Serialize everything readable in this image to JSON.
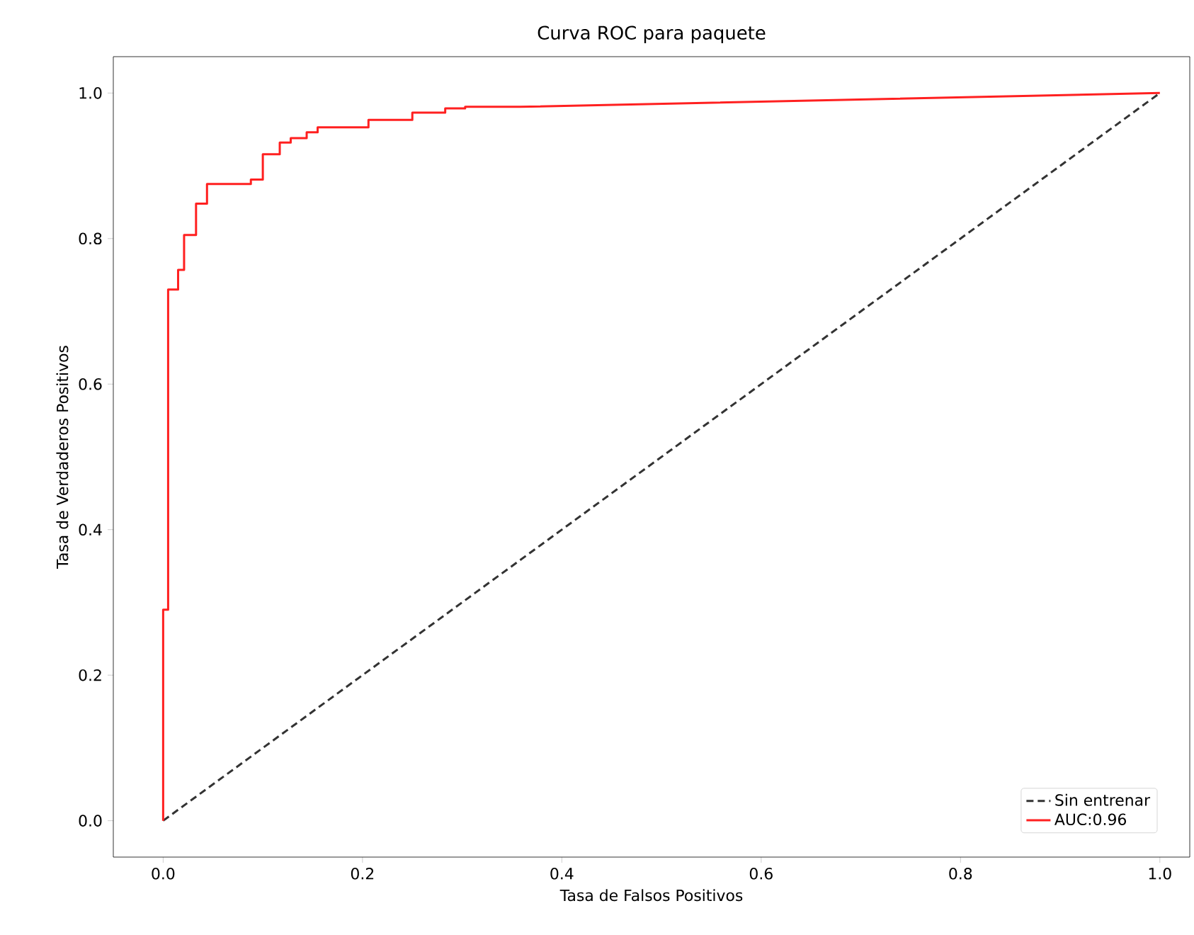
{
  "chart_data": {
    "type": "line",
    "title": "Curva ROC para paquete",
    "xlabel": "Tasa de Falsos Positivos",
    "ylabel": "Tasa de Verdaderos Positivos",
    "xlim": [
      -0.05,
      1.03
    ],
    "ylim": [
      -0.05,
      1.05
    ],
    "xticks": [
      {
        "value": 0,
        "label": "0.0"
      },
      {
        "value": 0.2,
        "label": "0.2"
      },
      {
        "value": 0.4,
        "label": "0.4"
      },
      {
        "value": 0.6,
        "label": "0.6"
      },
      {
        "value": 0.8,
        "label": "0.8"
      },
      {
        "value": 1,
        "label": "1.0"
      }
    ],
    "yticks": [
      {
        "value": 0,
        "label": "0.0"
      },
      {
        "value": 0.2,
        "label": "0.2"
      },
      {
        "value": 0.4,
        "label": "0.4"
      },
      {
        "value": 0.6,
        "label": "0.6"
      },
      {
        "value": 0.8,
        "label": "0.8"
      },
      {
        "value": 1,
        "label": "1.0"
      }
    ],
    "grid": false,
    "legend": "bottom right",
    "series": [
      {
        "name": "Sin entrenar",
        "color": "#333333",
        "line_style": "dashed",
        "x": [
          0,
          1
        ],
        "values": [
          0,
          1
        ]
      },
      {
        "name": "AUC:0.96",
        "color": "#ff2020",
        "line_style": "solid",
        "x": [
          0,
          0,
          0.005,
          0.005,
          0.015,
          0.015,
          0.021,
          0.021,
          0.033,
          0.033,
          0.044,
          0.044,
          0.088,
          0.088,
          0.1,
          0.1,
          0.117,
          0.117,
          0.128,
          0.128,
          0.144,
          0.144,
          0.155,
          0.155,
          0.206,
          0.206,
          0.25,
          0.25,
          0.283,
          0.283,
          0.303,
          0.303,
          0.358,
          1.0
        ],
        "values": [
          0,
          0.29,
          0.29,
          0.73,
          0.73,
          0.757,
          0.757,
          0.805,
          0.805,
          0.848,
          0.848,
          0.875,
          0.875,
          0.881,
          0.881,
          0.916,
          0.916,
          0.932,
          0.932,
          0.938,
          0.938,
          0.946,
          0.946,
          0.953,
          0.953,
          0.963,
          0.963,
          0.973,
          0.973,
          0.979,
          0.979,
          0.981,
          0.981,
          1.0
        ]
      }
    ]
  }
}
